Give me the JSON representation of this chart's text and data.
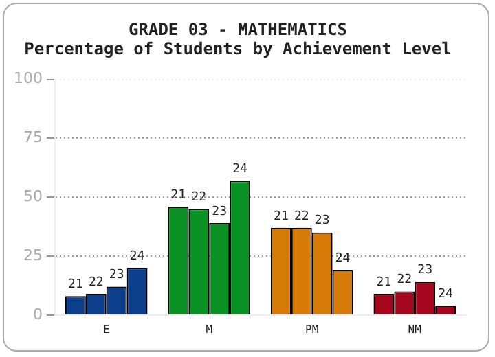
{
  "chart_data": {
    "type": "bar",
    "title": "GRADE 03 - MATHEMATICS",
    "subtitle": "Percentage of Students by Achievement Level",
    "categories": [
      "E",
      "M",
      "PM",
      "NM"
    ],
    "series": [
      {
        "name": "21",
        "colors": [
          "#0b3f8c",
          "#0a9224",
          "#d77b07",
          "#a6071f"
        ],
        "values": [
          8,
          46,
          37,
          9
        ]
      },
      {
        "name": "22",
        "colors": [
          "#0b3f8c",
          "#0a9224",
          "#d77b07",
          "#a6071f"
        ],
        "values": [
          9,
          45,
          37,
          10
        ]
      },
      {
        "name": "23",
        "colors": [
          "#0b3f8c",
          "#0a9224",
          "#d77b07",
          "#a6071f"
        ],
        "values": [
          12,
          39,
          35,
          14
        ]
      },
      {
        "name": "24",
        "colors": [
          "#0b3f8c",
          "#0a9224",
          "#d77b07",
          "#a6071f"
        ],
        "values": [
          20,
          57,
          19,
          4
        ]
      }
    ],
    "ylim": [
      0,
      100
    ],
    "yticks": [
      0,
      25,
      50,
      75,
      100
    ],
    "grid": "y",
    "legend": false
  }
}
